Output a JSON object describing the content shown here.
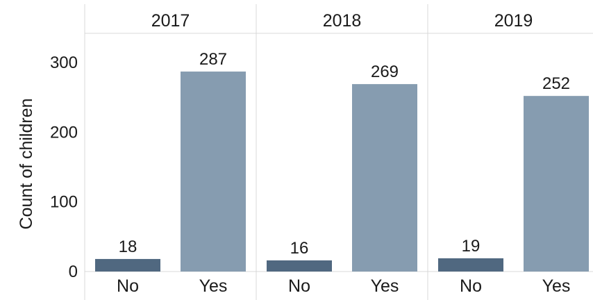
{
  "chart_data": {
    "type": "bar",
    "title": "",
    "ylabel": "Count of children",
    "xlabel": "",
    "ylim": [
      0,
      340
    ],
    "yticks": [
      0,
      100,
      200,
      300
    ],
    "facets": [
      {
        "label": "2017",
        "categories": [
          "No",
          "Yes"
        ],
        "values": [
          18,
          287
        ]
      },
      {
        "label": "2018",
        "categories": [
          "No",
          "Yes"
        ],
        "values": [
          16,
          269
        ]
      },
      {
        "label": "2019",
        "categories": [
          "No",
          "Yes"
        ],
        "values": [
          19,
          252
        ]
      }
    ],
    "colors": {
      "No": "#506880",
      "Yes": "#869cb0"
    },
    "grid": false,
    "legend": "none"
  }
}
